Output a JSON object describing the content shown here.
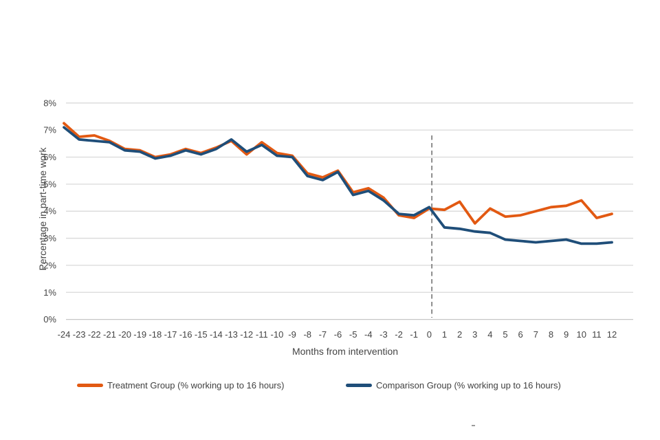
{
  "page": {
    "background": "#FFFFFF"
  },
  "colors": {
    "gridline": "#D9D9D9",
    "zero_axis_line": "#C6C6C6",
    "tick_text": "#444444",
    "axis_title_text": "#444444",
    "intervention_line": "#808080"
  },
  "chart_data": {
    "type": "line",
    "title": "",
    "xlabel": "Months from intervention",
    "ylabel": "Percentage in part-time work",
    "x": [
      -24,
      -23,
      -22,
      -21,
      -20,
      -19,
      -18,
      -17,
      -16,
      -15,
      -14,
      -13,
      -12,
      -11,
      -10,
      -9,
      -8,
      -7,
      -6,
      -5,
      -4,
      -3,
      -2,
      -1,
      0,
      1,
      2,
      3,
      4,
      5,
      6,
      7,
      8,
      9,
      10,
      11,
      12
    ],
    "x_tick_labels": [
      "-24",
      "-23",
      "-22",
      "-21",
      "-20",
      "-19",
      "-18",
      "-17",
      "-16",
      "-15",
      "-14",
      "-13",
      "-12",
      "-11",
      "-10",
      "-9",
      "-8",
      "-7",
      "-6",
      "-5",
      "-4",
      "-3",
      "-2",
      "-1",
      "0",
      "1",
      "2",
      "3",
      "4",
      "5",
      "6",
      "7",
      "8",
      "9",
      "10",
      "11",
      "12"
    ],
    "ylim": [
      0,
      8
    ],
    "y_ticks": [
      0,
      1,
      2,
      3,
      4,
      5,
      6,
      7,
      8
    ],
    "y_tick_labels": [
      "0%",
      "1%",
      "2%",
      "3%",
      "4%",
      "5%",
      "6%",
      "7%",
      "8%"
    ],
    "grid": true,
    "legend_position": "bottom",
    "series": [
      {
        "name": "Treatment Group (% working up to 16 hours)",
        "color": "#E25912",
        "values": [
          7.25,
          6.75,
          6.8,
          6.6,
          6.3,
          6.25,
          6.0,
          6.1,
          6.3,
          6.15,
          6.35,
          6.6,
          6.1,
          6.55,
          6.15,
          6.05,
          5.4,
          5.25,
          5.5,
          4.7,
          4.85,
          4.5,
          3.85,
          3.75,
          4.1,
          4.05,
          4.35,
          3.55,
          4.1,
          3.8,
          3.85,
          4.0,
          4.15,
          4.2,
          4.4,
          3.75,
          3.9
        ]
      },
      {
        "name": "Comparison Group (% working up to 16 hours)",
        "color": "#1F4E79",
        "values": [
          7.1,
          6.65,
          6.6,
          6.55,
          6.25,
          6.2,
          5.95,
          6.05,
          6.25,
          6.1,
          6.3,
          6.65,
          6.2,
          6.45,
          6.05,
          6.0,
          5.3,
          5.15,
          5.45,
          4.6,
          4.75,
          4.4,
          3.9,
          3.85,
          4.15,
          3.4,
          3.35,
          3.25,
          3.2,
          2.95,
          2.9,
          2.85,
          2.9,
          2.95,
          2.8,
          2.8,
          2.85
        ]
      }
    ],
    "annotations": [
      {
        "type": "vline",
        "x": 0,
        "style": "dashed",
        "color": "#808080"
      }
    ]
  }
}
